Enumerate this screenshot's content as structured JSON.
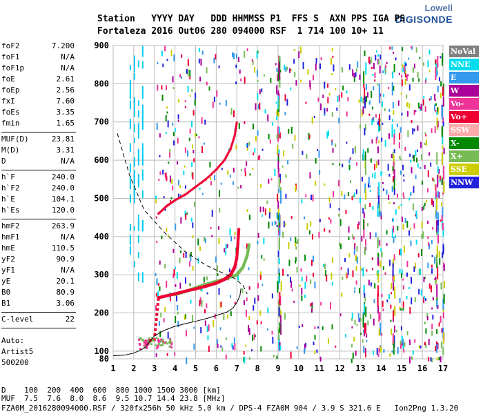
{
  "logo": {
    "line1": "Lowell",
    "line2": "DIGISONDE"
  },
  "header": {
    "labels_line": "Station   YYYY DAY   DDD HHMMSS P1  FFS S  AXN PPS IGA PS",
    "values_line": "Fortaleza 2016 Out06 280 094000 RSF  1 714 100 10+ 11"
  },
  "params": {
    "group1": [
      {
        "k": "foF2",
        "v": "7.200"
      },
      {
        "k": "foF1",
        "v": "N/A"
      },
      {
        "k": "foF1p",
        "v": "N/A"
      },
      {
        "k": "foE",
        "v": "2.61"
      },
      {
        "k": "foEp",
        "v": "2.56"
      },
      {
        "k": "fxI",
        "v": "7.60"
      },
      {
        "k": "foEs",
        "v": "3.35"
      },
      {
        "k": "fmin",
        "v": "1.65"
      }
    ],
    "group2": [
      {
        "k": "MUF(D)",
        "v": "23.81"
      },
      {
        "k": "M(D)",
        "v": "3.31"
      },
      {
        "k": "D",
        "v": "N/A"
      }
    ],
    "group3": [
      {
        "k": "h`F",
        "v": "240.0"
      },
      {
        "k": "h`F2",
        "v": "240.0"
      },
      {
        "k": "h`E",
        "v": "104.1"
      },
      {
        "k": "h`Es",
        "v": "120.0"
      }
    ],
    "group4": [
      {
        "k": "hmF2",
        "v": "263.9"
      },
      {
        "k": "hmF1",
        "v": "N/A"
      },
      {
        "k": "hmE",
        "v": "110.5"
      },
      {
        "k": "yF2",
        "v": "90.9"
      },
      {
        "k": "yF1",
        "v": "N/A"
      },
      {
        "k": "yE",
        "v": "20.1"
      },
      {
        "k": "B0",
        "v": "80.9"
      },
      {
        "k": "B1",
        "v": "3.06"
      }
    ],
    "group5": [
      {
        "k": "C-level",
        "v": "22"
      }
    ],
    "auto": [
      "Auto:",
      "Artist5",
      "500200"
    ]
  },
  "legend": [
    {
      "label": "NoVal",
      "color": "#808080"
    },
    {
      "label": "NNE",
      "color": "#00ddee"
    },
    {
      "label": "E",
      "color": "#3399ee"
    },
    {
      "label": "W",
      "color": "#aa0099"
    },
    {
      "label": "Vo-",
      "color": "#ee3399"
    },
    {
      "label": "Vo+",
      "color": "#ee0033"
    },
    {
      "label": "SSW",
      "color": "#ffaaaa"
    },
    {
      "label": "X-",
      "color": "#008800"
    },
    {
      "label": "X+",
      "color": "#77bb55"
    },
    {
      "label": "SSE",
      "color": "#cccc00"
    },
    {
      "label": "NNW",
      "color": "#2222dd"
    }
  ],
  "bottom": {
    "d_line": "D    100  200  400  600  800 1000 1500 3000 [km]",
    "muf_line": "MUF  7.5  7.6  8.0  8.6  9.5 10.7 14.4 23.8 [MHz]",
    "file_line": "FZA0M_2016280094000.RSF / 320fx256h 50 kHz 5.0 km / DPS-4 FZA0M 904 / 3.9 S 321.6 E   Ion2Png 1.3.20"
  },
  "chart_data": {
    "type": "scatter",
    "title": "",
    "xlabel": "",
    "ylabel": "",
    "xlim": [
      1,
      17
    ],
    "ylim": [
      80,
      900
    ],
    "x_ticks": [
      "1",
      "2",
      "3",
      "4",
      "5",
      "6",
      "7",
      "8",
      "9",
      "10",
      "11",
      "12",
      "13",
      "14",
      "15",
      "16",
      "17"
    ],
    "y_ticks": [
      "80",
      "100",
      "200",
      "300",
      "400",
      "500",
      "600",
      "700",
      "800",
      "900"
    ],
    "grid": true,
    "traces": {
      "o_trace": [
        [
          2.6,
          120
        ],
        [
          2.7,
          125
        ],
        [
          2.8,
          128
        ],
        [
          3.0,
          130
        ],
        [
          3.2,
          240
        ],
        [
          3.6,
          245
        ],
        [
          4.0,
          250
        ],
        [
          4.5,
          257
        ],
        [
          5.0,
          263
        ],
        [
          5.5,
          270
        ],
        [
          6.0,
          278
        ],
        [
          6.4,
          288
        ],
        [
          6.7,
          300
        ],
        [
          6.9,
          320
        ],
        [
          7.0,
          345
        ],
        [
          7.05,
          380
        ],
        [
          7.1,
          420
        ]
      ],
      "x_trace": [
        [
          4.0,
          248
        ],
        [
          4.5,
          256
        ],
        [
          5.0,
          266
        ],
        [
          5.5,
          275
        ],
        [
          6.0,
          283
        ],
        [
          6.5,
          290
        ],
        [
          7.0,
          300
        ],
        [
          7.3,
          320
        ],
        [
          7.5,
          350
        ],
        [
          7.6,
          380
        ]
      ],
      "multi_hop": [
        [
          3.2,
          460
        ],
        [
          3.6,
          480
        ],
        [
          4.0,
          495
        ],
        [
          4.5,
          510
        ],
        [
          5.0,
          530
        ],
        [
          5.5,
          550
        ],
        [
          6.0,
          575
        ],
        [
          6.4,
          600
        ],
        [
          6.7,
          630
        ],
        [
          6.9,
          665
        ],
        [
          7.0,
          700
        ]
      ],
      "profile": [
        [
          1.0,
          88
        ],
        [
          1.6,
          90
        ],
        [
          2.0,
          95
        ],
        [
          2.3,
          102
        ],
        [
          2.5,
          108
        ],
        [
          2.6,
          113
        ],
        [
          2.7,
          120
        ],
        [
          3.0,
          140
        ],
        [
          3.5,
          155
        ],
        [
          4.0,
          165
        ],
        [
          4.5,
          172
        ],
        [
          5.0,
          178
        ],
        [
          5.5,
          185
        ],
        [
          6.0,
          193
        ],
        [
          6.5,
          202
        ],
        [
          6.8,
          212
        ],
        [
          7.0,
          228
        ],
        [
          7.15,
          245
        ],
        [
          7.2,
          264
        ]
      ],
      "dashed": [
        [
          1.2,
          670
        ],
        [
          1.8,
          560
        ],
        [
          2.5,
          470
        ],
        [
          3.5,
          410
        ],
        [
          4.5,
          360
        ],
        [
          5.5,
          325
        ],
        [
          6.3,
          305
        ],
        [
          6.9,
          290
        ],
        [
          7.3,
          272
        ],
        [
          7.5,
          250
        ]
      ]
    }
  }
}
